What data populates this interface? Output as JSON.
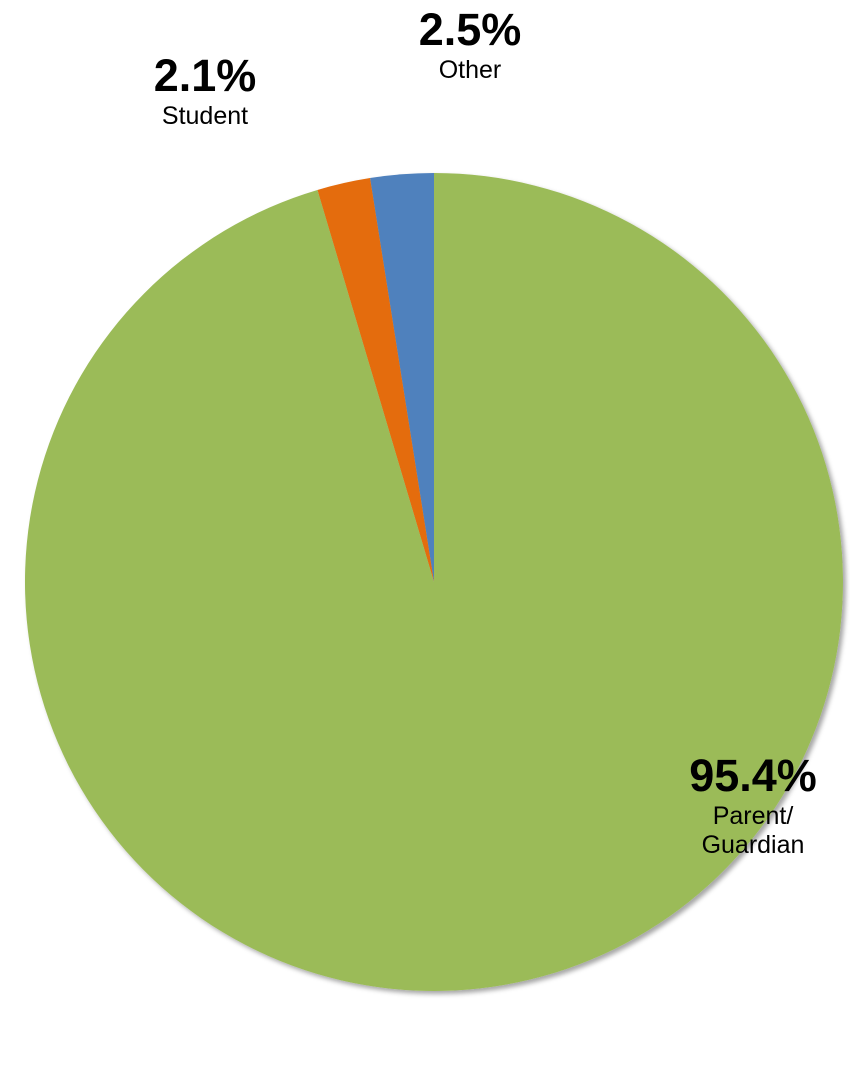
{
  "chart_data": {
    "type": "pie",
    "slices": [
      {
        "label": "Other",
        "value": 2.5,
        "value_label": "2.5%",
        "color": "#4f81bd"
      },
      {
        "label": "Student",
        "value": 2.1,
        "value_label": "2.1%",
        "color": "#e46c0a"
      },
      {
        "label": "Parent/ Guardian",
        "label_lines": [
          "Parent/",
          "Guardian"
        ],
        "value": 95.4,
        "value_label": "95.4%",
        "color": "#9bbb59"
      }
    ],
    "start_angle": "12 o'clock",
    "direction": "counterclockwise",
    "legend": "none"
  }
}
